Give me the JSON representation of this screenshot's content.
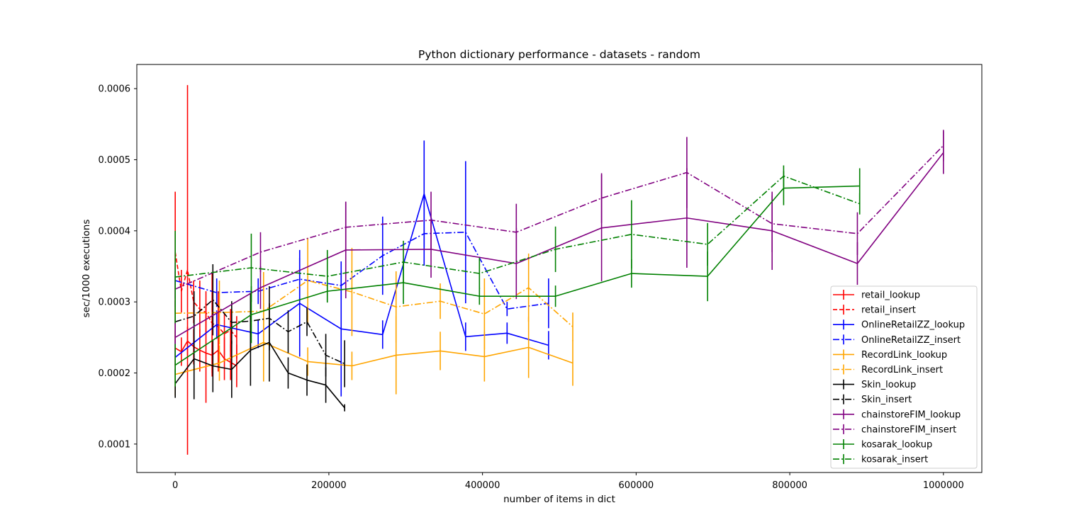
{
  "chart_data": {
    "type": "line",
    "title": "Python dictionary performance - datasets - random",
    "xlabel": "number of items in dict",
    "ylabel": "sec/1000 executions",
    "xlim": [
      -50000,
      1050000
    ],
    "ylim": [
      6e-05,
      0.000634
    ],
    "xticks": [
      0,
      200000,
      400000,
      600000,
      800000,
      1000000
    ],
    "xtick_labels": [
      "0",
      "200000",
      "400000",
      "600000",
      "800000",
      "1000000"
    ],
    "yticks": [
      0.0001,
      0.0002,
      0.0003,
      0.0004,
      0.0005,
      0.0006
    ],
    "ytick_labels": [
      "0.0001",
      "0.0002",
      "0.0003",
      "0.0004",
      "0.0005",
      "0.0006"
    ],
    "grid": false,
    "legend_position": "lower-right",
    "series": [
      {
        "name": "retail_lookup",
        "color": "#ff0000",
        "style": "solid",
        "x": [
          0,
          8000,
          16000,
          24000,
          32000,
          40000,
          48000,
          56000,
          64000,
          72000,
          80000
        ],
        "y": [
          0.000235,
          0.00023,
          0.000245,
          0.000237,
          0.000232,
          0.000228,
          0.000225,
          0.000232,
          0.00022,
          0.000215,
          0.00021
        ],
        "err": [
          2.5e-05,
          2e-05,
          2e-05,
          2.5e-05,
          3e-05,
          7e-05,
          3e-05,
          3e-05,
          3e-05,
          2.5e-05,
          3e-05
        ]
      },
      {
        "name": "retail_insert",
        "color": "#ff0000",
        "style": "dashed",
        "x": [
          0,
          8000,
          16000,
          24000,
          32000,
          40000,
          48000,
          56000,
          64000,
          72000,
          80000
        ],
        "y": [
          0.00037,
          0.000315,
          0.000345,
          0.0003,
          0.00029,
          0.000285,
          0.00027,
          0.000265,
          0.000255,
          0.00026,
          0.00025
        ],
        "err": [
          8.5e-05,
          3e-05,
          0.00026,
          3e-05,
          4e-05,
          3e-05,
          7e-05,
          5e-05,
          3e-05,
          3e-05,
          3e-05
        ]
      },
      {
        "name": "OnlineRetailZZ_lookup",
        "color": "#0000ff",
        "style": "solid",
        "x": [
          0,
          54000,
          108000,
          162000,
          216000,
          270000,
          324000,
          378000,
          432000,
          486000
        ],
        "y": [
          0.000222,
          0.000268,
          0.000255,
          0.000298,
          0.000262,
          0.000254,
          0.000452,
          0.000251,
          0.000256,
          0.000239
        ],
        "err": [
          2.2e-05,
          2e-05,
          2e-05,
          7.5e-05,
          9.5e-05,
          2e-05,
          7.5e-05,
          2e-05,
          1.5e-05,
          2e-05
        ]
      },
      {
        "name": "OnlineRetailZZ_insert",
        "color": "#0000ff",
        "style": "dashdot",
        "x": [
          0,
          54000,
          108000,
          162000,
          216000,
          270000,
          324000,
          378000,
          432000,
          486000
        ],
        "y": [
          0.00033,
          0.000313,
          0.000315,
          0.000332,
          0.000323,
          0.000365,
          0.000396,
          0.000398,
          0.00029,
          0.000298
        ],
        "err": [
          2.5e-05,
          2e-05,
          1.8e-05,
          3e-05,
          2e-05,
          5.5e-05,
          4.5e-05,
          0.0001,
          1e-05,
          3.5e-05
        ]
      },
      {
        "name": "RecordLink_lookup",
        "color": "#ffa500",
        "style": "solid",
        "x": [
          0,
          57500,
          115000,
          172500,
          230000,
          287500,
          345000,
          402500,
          460000,
          517500
        ],
        "y": [
          0.000198,
          0.000214,
          0.000243,
          0.000216,
          0.00021,
          0.000225,
          0.000231,
          0.000223,
          0.000236,
          0.000214
        ],
        "err": [
          3e-05,
          2.5e-05,
          5.5e-05,
          2e-05,
          2e-05,
          5.5e-05,
          2.7e-05,
          3.5e-05,
          4.3e-05,
          3.2e-05
        ]
      },
      {
        "name": "RecordLink_insert",
        "color": "#ffa500",
        "style": "dashdot",
        "x": [
          0,
          57500,
          115000,
          172500,
          230000,
          287500,
          345000,
          402500,
          460000,
          517500
        ],
        "y": [
          0.000284,
          0.000285,
          0.000287,
          0.00033,
          0.000314,
          0.000293,
          0.000301,
          0.000283,
          0.00032,
          0.000265
        ],
        "err": [
          4e-05,
          4.5e-05,
          5.5e-05,
          6e-05,
          6.2e-05,
          5e-05,
          2.5e-05,
          5e-05,
          4.8e-05,
          2e-05
        ]
      },
      {
        "name": "Skin_lookup",
        "color": "#000000",
        "style": "solid",
        "x": [
          0,
          24500,
          49000,
          73500,
          98000,
          122500,
          147000,
          171500,
          196000,
          220500
        ],
        "y": [
          0.000185,
          0.00022,
          0.00021,
          0.000205,
          0.000232,
          0.000243,
          0.0002,
          0.00019,
          0.000183,
          0.000151
        ],
        "err": [
          2e-05,
          5.7e-05,
          3.7e-05,
          4e-05,
          5e-05,
          5.5e-05,
          2.2e-05,
          2.2e-05,
          2.5e-05,
          5e-06
        ]
      },
      {
        "name": "Skin_insert",
        "color": "#000000",
        "style": "dashdot",
        "x": [
          0,
          24500,
          49000,
          73500,
          98000,
          122500,
          147000,
          171500,
          196000,
          220500
        ],
        "y": [
          0.000272,
          0.00028,
          0.000303,
          0.000271,
          0.000273,
          0.000277,
          0.000258,
          0.000272,
          0.000225,
          0.000213
        ],
        "err": [
          3e-05,
          3.5e-05,
          5e-05,
          3e-05,
          4e-05,
          4.5e-05,
          3e-05,
          2e-05,
          3e-05,
          3.3e-05
        ]
      },
      {
        "name": "chainstoreFIM_lookup",
        "color": "#800080",
        "style": "solid",
        "x": [
          0,
          111000,
          222000,
          333000,
          444000,
          555000,
          666000,
          777000,
          888000,
          1000000
        ],
        "y": [
          0.00025,
          0.00032,
          0.000373,
          0.000374,
          0.000354,
          0.000404,
          0.000418,
          0.0004,
          0.000354,
          0.00051
        ],
        "err": [
          2.5e-05,
          3e-05,
          6.8e-05,
          4e-05,
          5e-05,
          7.5e-05,
          7e-05,
          5.5e-05,
          3e-05,
          3e-05
        ]
      },
      {
        "name": "chainstoreFIM_insert",
        "color": "#800080",
        "style": "dashdot",
        "x": [
          0,
          111000,
          222000,
          333000,
          444000,
          555000,
          666000,
          777000,
          888000,
          1000000
        ],
        "y": [
          0.000318,
          0.00037,
          0.000405,
          0.000415,
          0.000398,
          0.000446,
          0.000482,
          0.00041,
          0.000396,
          0.00052
        ],
        "err": [
          2.5e-05,
          2.8e-05,
          3.5e-05,
          4e-05,
          4e-05,
          3.5e-05,
          5e-05,
          4e-05,
          3e-05,
          2.2e-05
        ]
      },
      {
        "name": "kosarak_lookup",
        "color": "#008000",
        "style": "solid",
        "x": [
          0,
          99000,
          198000,
          297000,
          396000,
          495000,
          594000,
          693000,
          792000,
          891000
        ],
        "y": [
          0.000211,
          0.000282,
          0.000315,
          0.000327,
          0.000308,
          0.000308,
          0.00034,
          0.000336,
          0.00046,
          0.000463
        ],
        "err": [
          3e-05,
          4e-05,
          1.5e-05,
          3e-05,
          1.2e-05,
          1.5e-05,
          2e-05,
          3.5e-05,
          2.4e-05,
          2.5e-05
        ]
      },
      {
        "name": "kosarak_insert",
        "color": "#008000",
        "style": "dashdot",
        "x": [
          0,
          99000,
          198000,
          297000,
          396000,
          495000,
          594000,
          693000,
          792000,
          891000
        ],
        "y": [
          0.000335,
          0.000348,
          0.000336,
          0.000356,
          0.00034,
          0.000374,
          0.000395,
          0.000381,
          0.000477,
          0.000438
        ],
        "err": [
          6.5e-05,
          4.8e-05,
          3.7e-05,
          3e-05,
          2.2e-05,
          3.2e-05,
          4.8e-05,
          3e-05,
          1.5e-05,
          1.5e-05
        ]
      }
    ]
  }
}
